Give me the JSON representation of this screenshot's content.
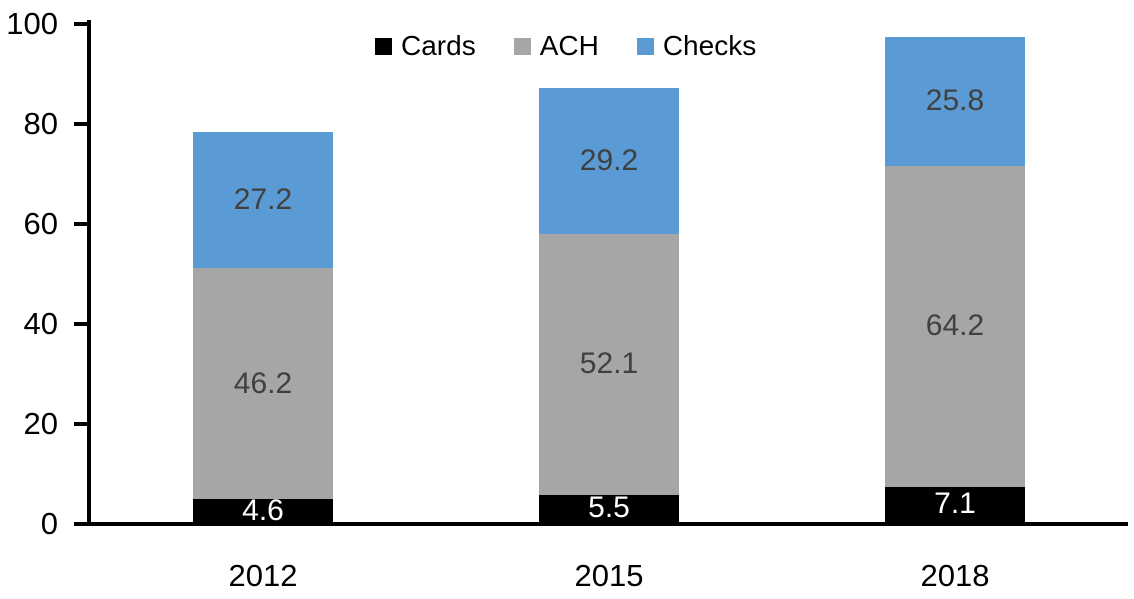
{
  "chart_data": {
    "type": "bar",
    "stacked": true,
    "title": "",
    "categories": [
      "2012",
      "2015",
      "2018"
    ],
    "series": [
      {
        "name": "Cards",
        "color": "#000000",
        "label_color": "#FFFFFF",
        "values": [
          4.6,
          5.5,
          7.1
        ]
      },
      {
        "name": "ACH",
        "color": "#A6A6A6",
        "label_color": "#404040",
        "values": [
          46.2,
          52.1,
          64.2
        ]
      },
      {
        "name": "Checks",
        "color": "#5B9BD5",
        "label_color": "#404040",
        "values": [
          27.2,
          29.2,
          25.8
        ]
      }
    ],
    "ylim": [
      0,
      100
    ],
    "yticks": [
      0,
      20,
      40,
      60,
      80,
      100
    ],
    "xlabel": "",
    "ylabel": "",
    "grid": false,
    "legend_position": "top-center",
    "axis_color": "#000000",
    "background_color": "#FFFFFF"
  }
}
